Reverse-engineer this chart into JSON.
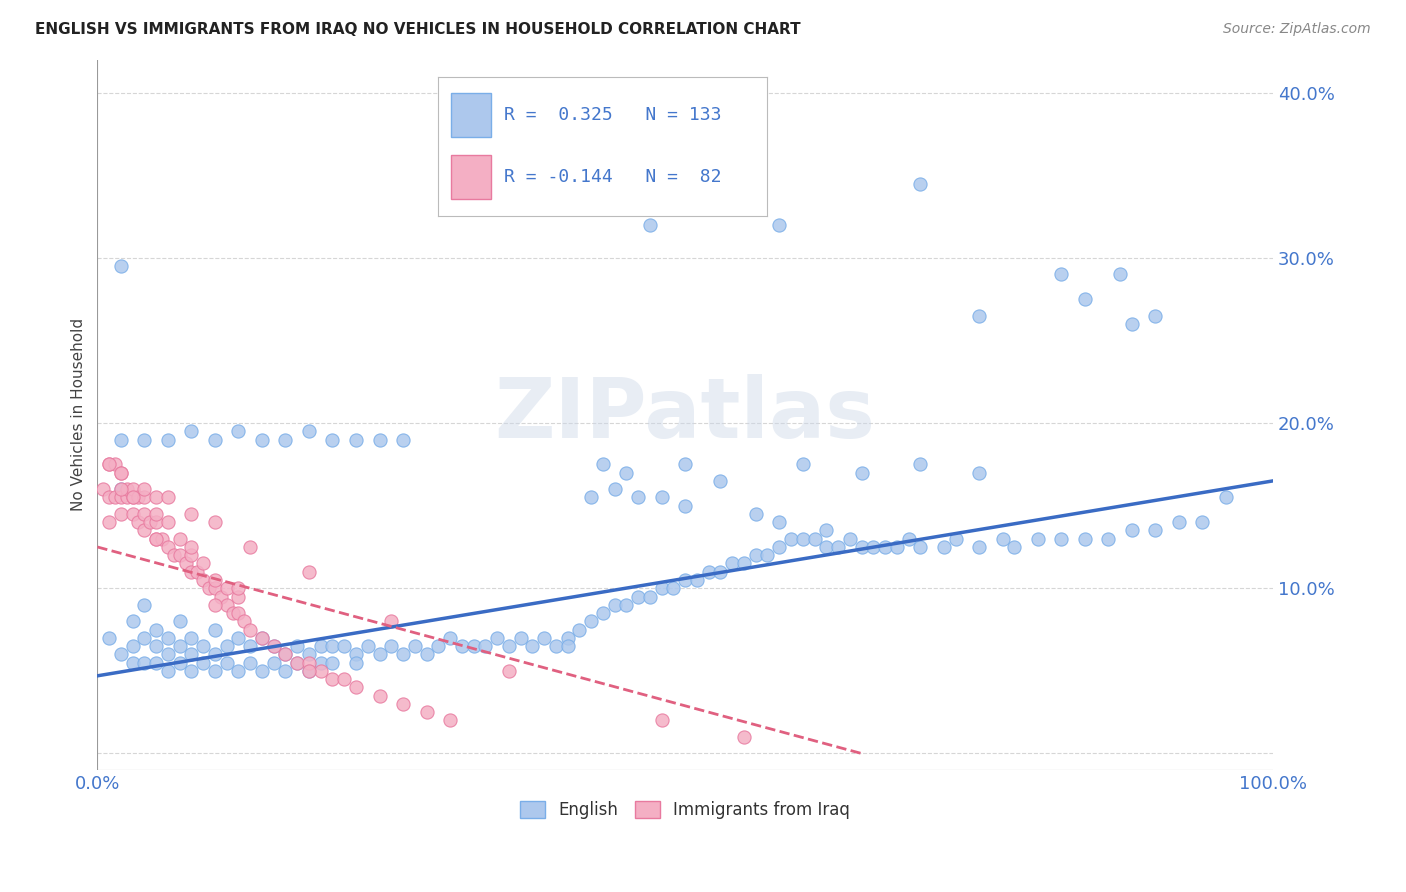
{
  "title": "ENGLISH VS IMMIGRANTS FROM IRAQ NO VEHICLES IN HOUSEHOLD CORRELATION CHART",
  "source": "Source: ZipAtlas.com",
  "ylabel": "No Vehicles in Household",
  "xlim": [
    0,
    1.0
  ],
  "ylim": [
    -0.01,
    0.42
  ],
  "english_color": "#adc8ed",
  "english_edge_color": "#7aaee8",
  "iraq_color": "#f4afc4",
  "iraq_edge_color": "#e87a9f",
  "trend_english_color": "#3a6bc4",
  "trend_iraq_color": "#e06080",
  "legend_english_label": "English",
  "legend_iraq_label": "Immigrants from Iraq",
  "R_english": 0.325,
  "N_english": 133,
  "R_iraq": -0.144,
  "N_iraq": 82,
  "watermark": "ZIPatlas",
  "trend_eng_x0": 0.0,
  "trend_eng_y0": 0.047,
  "trend_eng_x1": 1.0,
  "trend_eng_y1": 0.165,
  "trend_iraq_x0": 0.0,
  "trend_iraq_y0": 0.125,
  "trend_iraq_x1": 0.65,
  "trend_iraq_y1": 0.0,
  "english_x": [
    0.01,
    0.02,
    0.02,
    0.03,
    0.03,
    0.03,
    0.04,
    0.04,
    0.04,
    0.05,
    0.05,
    0.05,
    0.06,
    0.06,
    0.06,
    0.07,
    0.07,
    0.07,
    0.08,
    0.08,
    0.08,
    0.09,
    0.09,
    0.1,
    0.1,
    0.1,
    0.11,
    0.11,
    0.12,
    0.12,
    0.13,
    0.13,
    0.14,
    0.14,
    0.15,
    0.15,
    0.16,
    0.16,
    0.17,
    0.17,
    0.18,
    0.18,
    0.19,
    0.19,
    0.2,
    0.2,
    0.21,
    0.22,
    0.22,
    0.23,
    0.24,
    0.25,
    0.26,
    0.27,
    0.28,
    0.29,
    0.3,
    0.31,
    0.32,
    0.33,
    0.34,
    0.35,
    0.36,
    0.37,
    0.38,
    0.39,
    0.4,
    0.4,
    0.41,
    0.42,
    0.43,
    0.44,
    0.45,
    0.46,
    0.47,
    0.48,
    0.49,
    0.5,
    0.51,
    0.52,
    0.53,
    0.54,
    0.55,
    0.56,
    0.57,
    0.58,
    0.59,
    0.6,
    0.61,
    0.62,
    0.63,
    0.64,
    0.65,
    0.66,
    0.67,
    0.68,
    0.69,
    0.7,
    0.72,
    0.73,
    0.75,
    0.77,
    0.78,
    0.8,
    0.82,
    0.84,
    0.86,
    0.88,
    0.9,
    0.92,
    0.94,
    0.96,
    0.62,
    0.58,
    0.56,
    0.5,
    0.48,
    0.46,
    0.44,
    0.42,
    0.02,
    0.04,
    0.06,
    0.08,
    0.1,
    0.12,
    0.14,
    0.16,
    0.18,
    0.2,
    0.22,
    0.24,
    0.26
  ],
  "english_y": [
    0.07,
    0.06,
    0.16,
    0.065,
    0.08,
    0.055,
    0.07,
    0.055,
    0.09,
    0.065,
    0.055,
    0.075,
    0.06,
    0.07,
    0.05,
    0.065,
    0.08,
    0.055,
    0.07,
    0.06,
    0.05,
    0.065,
    0.055,
    0.06,
    0.075,
    0.05,
    0.065,
    0.055,
    0.07,
    0.05,
    0.065,
    0.055,
    0.07,
    0.05,
    0.065,
    0.055,
    0.06,
    0.05,
    0.065,
    0.055,
    0.06,
    0.05,
    0.065,
    0.055,
    0.065,
    0.055,
    0.065,
    0.06,
    0.055,
    0.065,
    0.06,
    0.065,
    0.06,
    0.065,
    0.06,
    0.065,
    0.07,
    0.065,
    0.065,
    0.065,
    0.07,
    0.065,
    0.07,
    0.065,
    0.07,
    0.065,
    0.07,
    0.065,
    0.075,
    0.08,
    0.085,
    0.09,
    0.09,
    0.095,
    0.095,
    0.1,
    0.1,
    0.105,
    0.105,
    0.11,
    0.11,
    0.115,
    0.115,
    0.12,
    0.12,
    0.125,
    0.13,
    0.13,
    0.13,
    0.125,
    0.125,
    0.13,
    0.125,
    0.125,
    0.125,
    0.125,
    0.13,
    0.125,
    0.125,
    0.13,
    0.125,
    0.13,
    0.125,
    0.13,
    0.13,
    0.13,
    0.13,
    0.135,
    0.135,
    0.14,
    0.14,
    0.155,
    0.135,
    0.14,
    0.145,
    0.15,
    0.155,
    0.155,
    0.16,
    0.155,
    0.19,
    0.19,
    0.19,
    0.195,
    0.19,
    0.195,
    0.19,
    0.19,
    0.195,
    0.19,
    0.19,
    0.19,
    0.19
  ],
  "english_outliers_x": [
    0.02,
    0.47,
    0.7,
    0.75,
    0.82,
    0.84,
    0.87,
    0.88,
    0.9,
    0.58
  ],
  "english_outliers_y": [
    0.295,
    0.32,
    0.345,
    0.265,
    0.29,
    0.275,
    0.29,
    0.26,
    0.265,
    0.32
  ],
  "english_mid_x": [
    0.43,
    0.45,
    0.5,
    0.53,
    0.6,
    0.65,
    0.7,
    0.75
  ],
  "english_mid_y": [
    0.175,
    0.17,
    0.175,
    0.165,
    0.175,
    0.17,
    0.175,
    0.17
  ],
  "iraq_x": [
    0.005,
    0.01,
    0.01,
    0.01,
    0.015,
    0.015,
    0.02,
    0.02,
    0.02,
    0.025,
    0.025,
    0.03,
    0.03,
    0.03,
    0.035,
    0.035,
    0.04,
    0.04,
    0.04,
    0.045,
    0.05,
    0.05,
    0.05,
    0.055,
    0.06,
    0.06,
    0.065,
    0.07,
    0.07,
    0.075,
    0.08,
    0.08,
    0.085,
    0.09,
    0.09,
    0.095,
    0.1,
    0.1,
    0.105,
    0.11,
    0.11,
    0.115,
    0.12,
    0.12,
    0.125,
    0.13,
    0.14,
    0.15,
    0.16,
    0.17,
    0.18,
    0.19,
    0.2,
    0.21,
    0.22,
    0.24,
    0.26,
    0.28,
    0.3,
    0.02,
    0.04,
    0.06,
    0.08,
    0.1,
    0.13,
    0.18,
    0.25,
    0.35,
    0.48,
    0.55,
    0.01,
    0.03,
    0.05,
    0.08,
    0.12,
    0.02,
    0.05,
    0.1,
    0.18
  ],
  "iraq_y": [
    0.16,
    0.155,
    0.14,
    0.175,
    0.155,
    0.175,
    0.155,
    0.17,
    0.145,
    0.155,
    0.16,
    0.145,
    0.155,
    0.16,
    0.14,
    0.155,
    0.135,
    0.145,
    0.155,
    0.14,
    0.13,
    0.14,
    0.155,
    0.13,
    0.125,
    0.14,
    0.12,
    0.12,
    0.13,
    0.115,
    0.11,
    0.12,
    0.11,
    0.105,
    0.115,
    0.1,
    0.1,
    0.105,
    0.095,
    0.09,
    0.1,
    0.085,
    0.085,
    0.095,
    0.08,
    0.075,
    0.07,
    0.065,
    0.06,
    0.055,
    0.055,
    0.05,
    0.045,
    0.045,
    0.04,
    0.035,
    0.03,
    0.025,
    0.02,
    0.17,
    0.16,
    0.155,
    0.145,
    0.14,
    0.125,
    0.11,
    0.08,
    0.05,
    0.02,
    0.01,
    0.175,
    0.155,
    0.145,
    0.125,
    0.1,
    0.16,
    0.13,
    0.09,
    0.05
  ]
}
